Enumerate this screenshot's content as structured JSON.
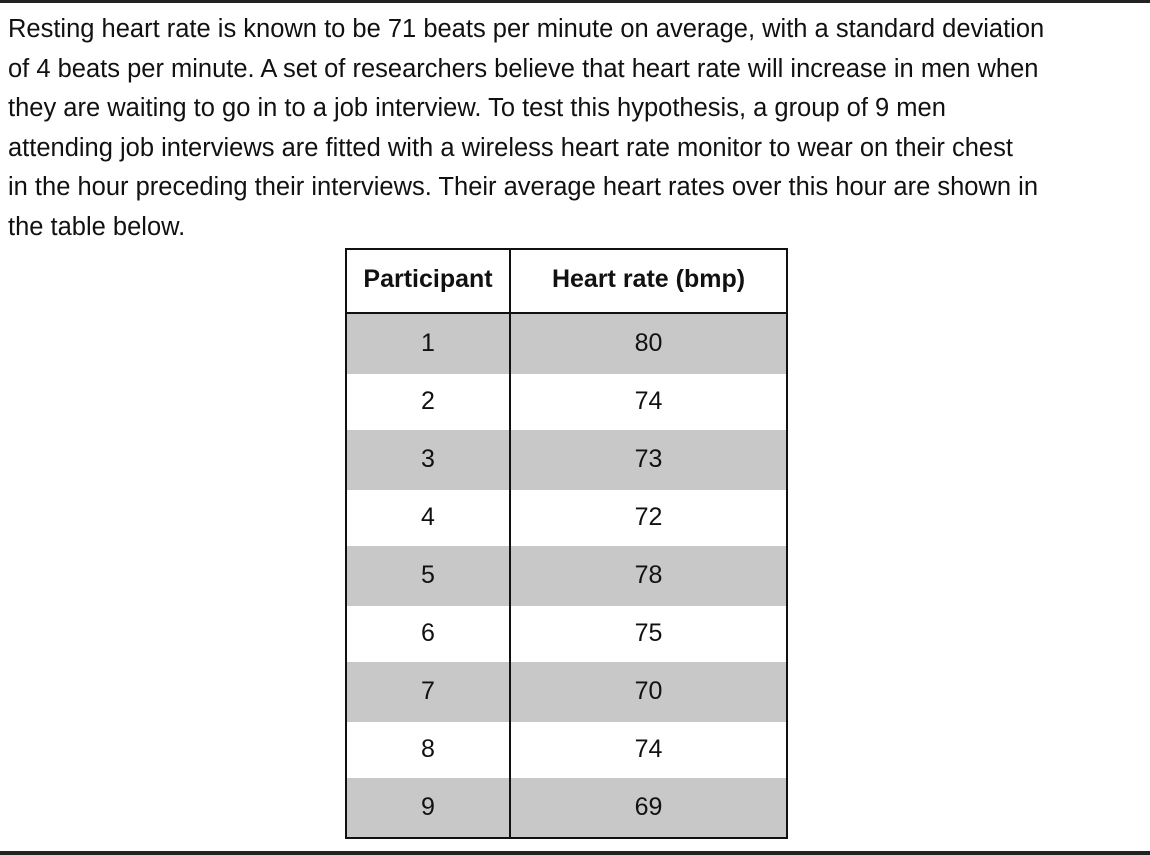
{
  "problem": {
    "lines": [
      "Resting heart rate is known to be 71 beats per minute on average, with a standard deviation",
      "of 4 beats per minute. A set of researchers believe that heart rate will increase in men when",
      "they are waiting to go in to a job interview. To test this hypothesis, a group of 9 men",
      "attending job interviews are fitted with a wireless heart rate monitor to wear on their chest",
      "in the hour preceding their interviews. Their average heart rates over this hour are shown in",
      "the table below."
    ]
  },
  "table": {
    "headers": [
      "Participant",
      "Heart rate (bmp)"
    ],
    "rows": [
      {
        "participant": "1",
        "rate": "80"
      },
      {
        "participant": "2",
        "rate": "74"
      },
      {
        "participant": "3",
        "rate": "73"
      },
      {
        "participant": "4",
        "rate": "72"
      },
      {
        "participant": "5",
        "rate": "78"
      },
      {
        "participant": "6",
        "rate": "75"
      },
      {
        "participant": "7",
        "rate": "70"
      },
      {
        "participant": "8",
        "rate": "74"
      },
      {
        "participant": "9",
        "rate": "69"
      }
    ]
  }
}
